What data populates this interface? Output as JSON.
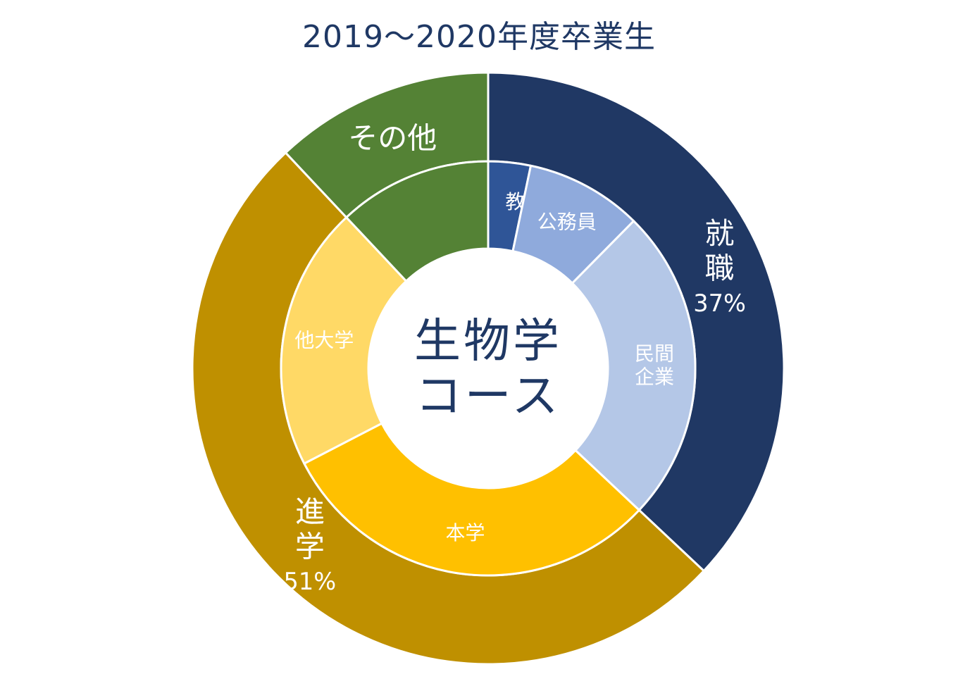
{
  "chart_data": {
    "type": "donut",
    "title": "2019～2020年度卒業生",
    "center_label": [
      "生物学",
      "コース"
    ],
    "outer_ring": [
      {
        "label": "就職",
        "display": [
          "就",
          "職"
        ],
        "value": 37,
        "value_label": "37%",
        "color": "#203864",
        "text_color": "#ffffff"
      },
      {
        "label": "進学",
        "display": [
          "進",
          "学"
        ],
        "value": 51,
        "value_label": "51%",
        "color": "#bf9000",
        "text_color": "#ffffff"
      },
      {
        "label": "その他",
        "display": [
          "その他"
        ],
        "value": 12,
        "value_label": "",
        "color": "#548235",
        "text_color": "#ffffff"
      }
    ],
    "inner_ring": [
      {
        "label": "教員",
        "display": [
          "教員"
        ],
        "value": 3.3,
        "color": "#2f5597",
        "text_color": "#ffffff"
      },
      {
        "label": "公務員",
        "display": [
          "公務員"
        ],
        "value": 9.1,
        "color": "#8faadc",
        "text_color": "#ffffff"
      },
      {
        "label": "民間企業",
        "display": [
          "民間",
          "企業"
        ],
        "value": 24.6,
        "color": "#b4c7e7",
        "text_color": "#ffffff"
      },
      {
        "label": "本学",
        "display": [
          "本学"
        ],
        "value": 30.4,
        "color": "#ffc000",
        "text_color": "#ffffff"
      },
      {
        "label": "他大学",
        "display": [
          "他大学"
        ],
        "value": 20.6,
        "color": "#ffd966",
        "text_color": "#ffffff"
      },
      {
        "label": "その他",
        "display": [],
        "value": 12,
        "color": "#548235",
        "text_color": "#ffffff"
      }
    ]
  }
}
